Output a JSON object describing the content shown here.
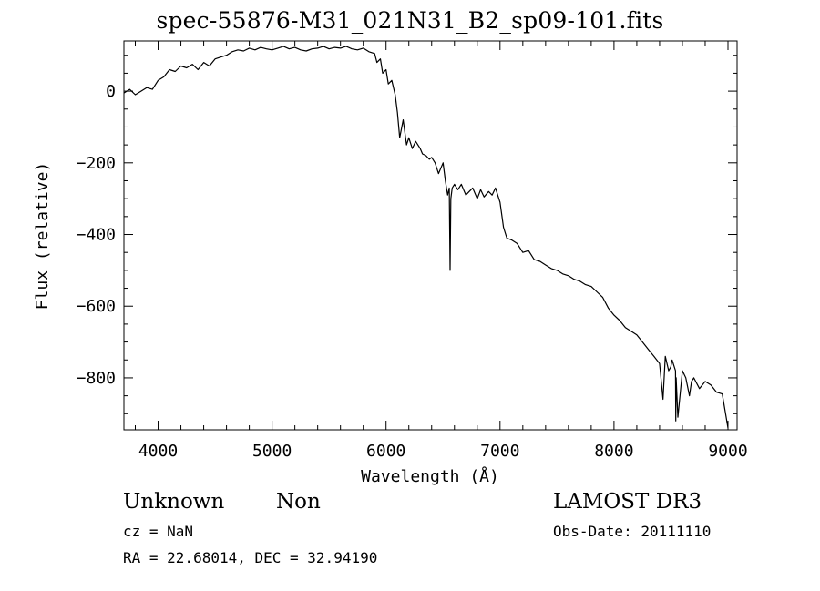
{
  "title": "spec-55876-M31_021N31_B2_sp09-101.fits",
  "info": {
    "object_class": "Unknown",
    "object_subclass": "Non",
    "survey": "LAMOST DR3",
    "cz": "cz = NaN",
    "obs_date": "Obs-Date: 20111110",
    "radec": "RA =  22.68014, DEC =  32.94190"
  },
  "colors": {
    "line": "#000000",
    "background": "#ffffff"
  },
  "chart_data": {
    "type": "line",
    "title": "spec-55876-M31_021N31_B2_sp09-101.fits",
    "xlabel": "Wavelength (Å)",
    "ylabel": "Flux (relative)",
    "xlim": [
      3700,
      9080
    ],
    "ylim": [
      -945,
      140
    ],
    "xticks": [
      4000,
      5000,
      6000,
      7000,
      8000,
      9000
    ],
    "yticks": [
      0,
      -200,
      -400,
      -600,
      -800
    ],
    "x_minor_step": 200,
    "y_minor_step": 50,
    "grid": false,
    "legend": "none",
    "series": [
      {
        "x": [
          3700,
          3750,
          3800,
          3850,
          3900,
          3950,
          4000,
          4050,
          4100,
          4150,
          4200,
          4250,
          4300,
          4350,
          4400,
          4450,
          4500,
          4550,
          4600,
          4650,
          4700,
          4750,
          4800,
          4850,
          4900,
          4950,
          5000,
          5050,
          5100,
          5150,
          5200,
          5250,
          5300,
          5350,
          5400,
          5450,
          5500,
          5550,
          5600,
          5650,
          5700,
          5750,
          5800,
          5850,
          5900,
          5920,
          5950,
          5970,
          6000,
          6020,
          6050,
          6080,
          6100,
          6120,
          6150,
          6180,
          6200,
          6230,
          6260,
          6300,
          6320,
          6350,
          6380,
          6400,
          6430,
          6460,
          6500,
          6520,
          6540,
          6555,
          6562,
          6568,
          6580,
          6600,
          6630,
          6660,
          6700,
          6730,
          6760,
          6800,
          6830,
          6860,
          6900,
          6930,
          6960,
          7000,
          7030,
          7060,
          7100,
          7150,
          7200,
          7250,
          7300,
          7350,
          7400,
          7450,
          7500,
          7550,
          7600,
          7650,
          7700,
          7750,
          7800,
          7850,
          7900,
          7950,
          8000,
          8050,
          8100,
          8150,
          8200,
          8250,
          8300,
          8350,
          8400,
          8430,
          8450,
          8480,
          8498,
          8510,
          8540,
          8542,
          8545,
          8560,
          8600,
          8630,
          8662,
          8680,
          8700,
          8750,
          8800,
          8850,
          8900,
          8950,
          9000
        ],
        "y": [
          -5,
          5,
          -10,
          0,
          10,
          5,
          30,
          40,
          60,
          55,
          70,
          65,
          75,
          60,
          80,
          70,
          90,
          95,
          100,
          110,
          115,
          112,
          120,
          115,
          122,
          118,
          115,
          120,
          125,
          118,
          122,
          115,
          112,
          118,
          120,
          125,
          118,
          122,
          120,
          125,
          118,
          115,
          120,
          110,
          105,
          80,
          90,
          50,
          60,
          20,
          30,
          -10,
          -60,
          -130,
          -80,
          -150,
          -130,
          -160,
          -140,
          -160,
          -175,
          -180,
          -190,
          -185,
          -200,
          -230,
          -200,
          -250,
          -290,
          -270,
          -500,
          -300,
          -270,
          -260,
          -275,
          -260,
          -290,
          -280,
          -270,
          -300,
          -275,
          -295,
          -280,
          -290,
          -270,
          -310,
          -380,
          -410,
          -415,
          -425,
          -450,
          -445,
          -470,
          -475,
          -485,
          -495,
          -500,
          -510,
          -515,
          -525,
          -530,
          -540,
          -545,
          -560,
          -575,
          -605,
          -625,
          -640,
          -660,
          -670,
          -680,
          -700,
          -720,
          -740,
          -760,
          -860,
          -740,
          -780,
          -770,
          -750,
          -780,
          -920,
          -800,
          -910,
          -780,
          -800,
          -850,
          -810,
          -800,
          -830,
          -810,
          -820,
          -840,
          -845,
          -940
        ]
      }
    ]
  }
}
